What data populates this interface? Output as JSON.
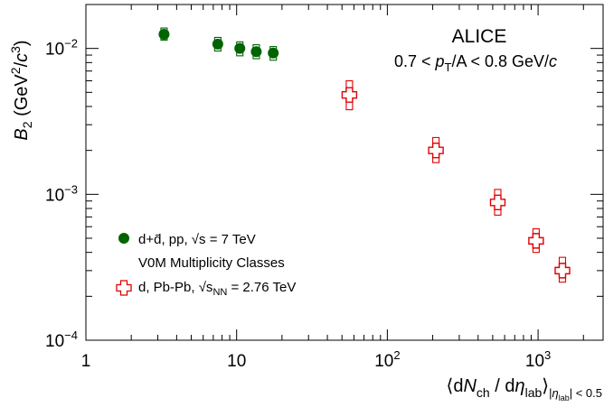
{
  "chart_data": {
    "type": "scatter",
    "x_scale": "log",
    "y_scale": "log",
    "xlim": [
      1,
      2700
    ],
    "ylim": [
      0.0001,
      0.02
    ],
    "x_ticks": [
      {
        "value": 1,
        "base": "1",
        "exp": ""
      },
      {
        "value": 10,
        "base": "10",
        "exp": ""
      },
      {
        "value": 100,
        "base": "10",
        "exp": "2"
      },
      {
        "value": 1000,
        "base": "10",
        "exp": "3"
      }
    ],
    "y_ticks": [
      {
        "value": 0.0001,
        "base": "10",
        "exp": "−4"
      },
      {
        "value": 0.001,
        "base": "10",
        "exp": "−3"
      },
      {
        "value": 0.01,
        "base": "10",
        "exp": "−2"
      }
    ],
    "ylabel": {
      "main": "B",
      "sub": "2",
      "unit_open": " (GeV",
      "sup1": "2",
      "unit_mid": "/",
      "unit_c": "c",
      "sup2": "3",
      "unit_close": ")"
    },
    "xlabel": {
      "open": "⟨d",
      "N": "N",
      "sub_ch": "ch",
      "slash": " / d",
      "eta": "η",
      "sub_lab": "lab",
      "close": "⟩",
      "range_bar": "|",
      "range_eta": "η",
      "range_sub": "lab",
      "range_tail": "| < 0.5"
    },
    "annotation": {
      "title": "ALICE",
      "range_low": "0.7 < ",
      "range_p": "p",
      "range_sub": "T",
      "range_mid": "/A < 0.8 GeV/",
      "range_c": "c"
    },
    "legend": {
      "pp_label": "d+d̄, pp, √s = 7 TeV",
      "v0m_label": "V0M Multiplicity Classes",
      "pbpb_label": "d, Pb-Pb, √s",
      "pbpb_sub": "NN",
      "pbpb_tail": " = 2.76 TeV"
    },
    "series": [
      {
        "name": "d+d̄, pp, √s = 7 TeV",
        "color": "#006400",
        "marker": "circle",
        "points": [
          {
            "x": 3.3,
            "y": 0.0125,
            "syst_low": 0.0114,
            "syst_high": 0.0138
          },
          {
            "x": 7.5,
            "y": 0.0107,
            "syst_low": 0.0096,
            "syst_high": 0.0119
          },
          {
            "x": 10.5,
            "y": 0.01,
            "syst_low": 0.0089,
            "syst_high": 0.0111
          },
          {
            "x": 13.5,
            "y": 0.0095,
            "syst_low": 0.0085,
            "syst_high": 0.0106
          },
          {
            "x": 17.5,
            "y": 0.0093,
            "syst_low": 0.0083,
            "syst_high": 0.0103
          }
        ]
      },
      {
        "name": "d, Pb-Pb, √sNN = 2.76 TeV",
        "color": "#e00000",
        "marker": "open-cross",
        "points": [
          {
            "x": 56,
            "y": 0.0048,
            "syst_low": 0.0038,
            "syst_high": 0.006
          },
          {
            "x": 210,
            "y": 0.002,
            "syst_low": 0.00165,
            "syst_high": 0.00245
          },
          {
            "x": 540,
            "y": 0.00088,
            "syst_low": 0.00072,
            "syst_high": 0.00108
          },
          {
            "x": 970,
            "y": 0.00048,
            "syst_low": 0.0004,
            "syst_high": 0.00058
          },
          {
            "x": 1450,
            "y": 0.0003,
            "syst_low": 0.00025,
            "syst_high": 0.00037
          }
        ]
      }
    ]
  }
}
